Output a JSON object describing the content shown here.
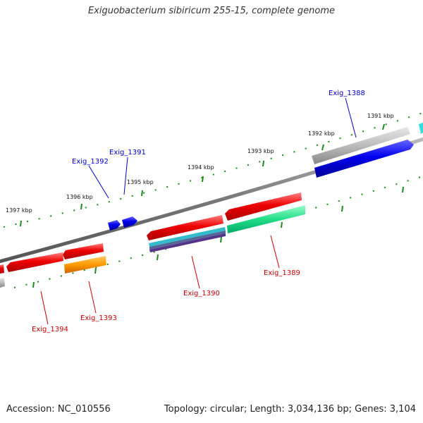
{
  "title": "Exiguobacterium sibiricum 255-15, complete genome",
  "accession": "Accession: NC_010556",
  "summary": "Topology: circular; Length: 3,034,136 bp; Genes: 3,104",
  "colors": {
    "label_forward": "#0000cc",
    "label_reverse": "#cc0000",
    "tick": "#006600",
    "backbone": "#888888"
  },
  "ruler_labels": [
    "1391 kbp",
    "1392 kbp",
    "1393 kbp",
    "1394 kbp",
    "1395 kbp",
    "1396 kbp",
    "1397 kbp"
  ],
  "gene_labels": {
    "forward": [
      "Exig_1388",
      "Exig_1391",
      "Exig_1392"
    ],
    "reverse": [
      "Exig_1389",
      "Exig_1390",
      "Exig_1393",
      "Exig_1394"
    ]
  }
}
